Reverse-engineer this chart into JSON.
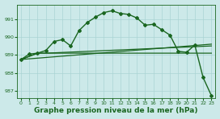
{
  "background_color": "#cce9e9",
  "grid_color": "#aad4d4",
  "line_color": "#1a6620",
  "title": "Graphe pression niveau de la mer (hPa)",
  "title_fontsize": 6.5,
  "xlim": [
    -0.5,
    23.5
  ],
  "ylim": [
    986.6,
    991.8
  ],
  "yticks": [
    987,
    988,
    989,
    990,
    991
  ],
  "xticks": [
    0,
    1,
    2,
    3,
    4,
    5,
    6,
    7,
    8,
    9,
    10,
    11,
    12,
    13,
    14,
    15,
    16,
    17,
    18,
    19,
    20,
    21,
    22,
    23
  ],
  "series_main": {
    "x": [
      0,
      1,
      2,
      3,
      4,
      5,
      6,
      7,
      8,
      9,
      10,
      11,
      12,
      13,
      14,
      15,
      16,
      17,
      18,
      19,
      20,
      21,
      22,
      23
    ],
    "y": [
      988.75,
      989.05,
      989.1,
      989.25,
      989.75,
      989.85,
      989.5,
      990.35,
      990.8,
      991.1,
      991.35,
      991.45,
      991.3,
      991.25,
      991.05,
      990.65,
      990.7,
      990.4,
      990.1,
      989.2,
      989.15,
      989.55,
      987.75,
      986.75
    ]
  },
  "series_line1": {
    "x": [
      0,
      2,
      3,
      23
    ],
    "y": [
      988.75,
      989.1,
      989.1,
      989.5
    ]
  },
  "series_line2": {
    "x": [
      0,
      2,
      3,
      23
    ],
    "y": [
      988.75,
      989.1,
      989.1,
      989.1
    ]
  },
  "series_diagonal": {
    "x": [
      0,
      23
    ],
    "y": [
      988.75,
      989.6
    ]
  }
}
